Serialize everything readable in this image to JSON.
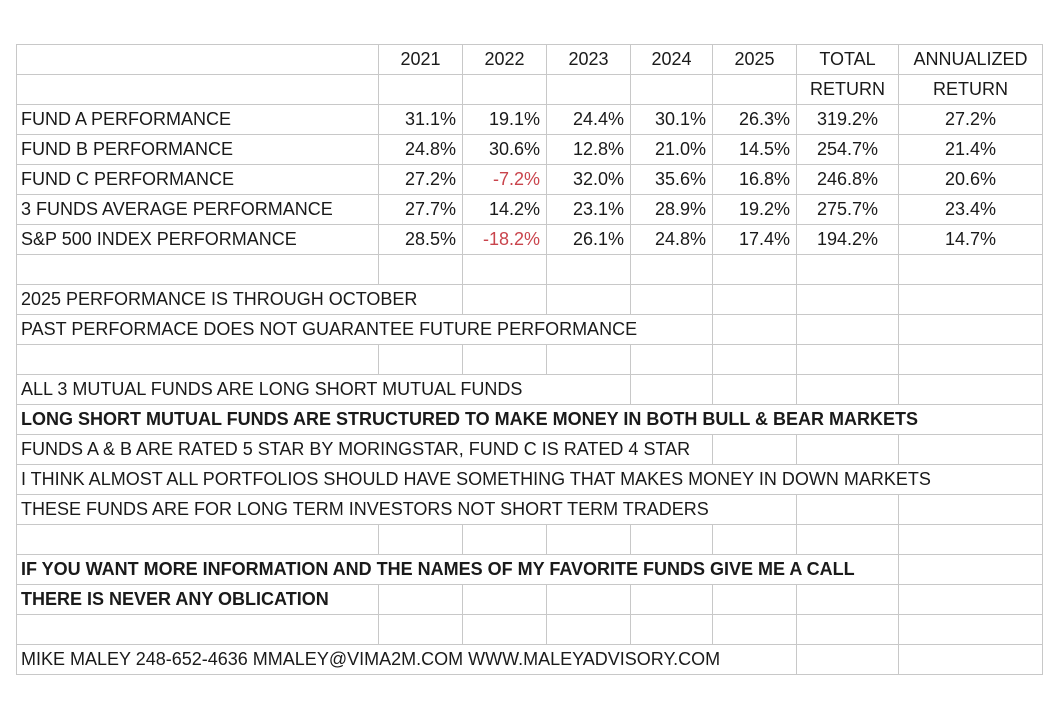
{
  "table": {
    "header": {
      "years": [
        "2021",
        "2022",
        "2023",
        "2024",
        "2025"
      ],
      "total": [
        "TOTAL",
        "RETURN"
      ],
      "annualized": [
        "ANNUALIZED",
        "RETURN"
      ]
    },
    "rows": [
      {
        "label": "FUND A PERFORMANCE",
        "values": [
          "31.1%",
          "19.1%",
          "24.4%",
          "30.1%",
          "26.3%",
          "319.2%",
          "27.2%"
        ]
      },
      {
        "label": "FUND B PERFORMANCE",
        "values": [
          "24.8%",
          "30.6%",
          "12.8%",
          "21.0%",
          "14.5%",
          "254.7%",
          "21.4%"
        ]
      },
      {
        "label": "FUND C  PERFORMANCE",
        "values": [
          "27.2%",
          "-7.2%",
          "32.0%",
          "35.6%",
          "16.8%",
          "246.8%",
          "20.6%"
        ]
      },
      {
        "label": "3 FUNDS AVERAGE PERFORMANCE",
        "values": [
          "27.7%",
          "14.2%",
          "23.1%",
          "28.9%",
          "19.2%",
          "275.7%",
          "23.4%"
        ]
      },
      {
        "label": "S&P 500 INDEX PERFORMANCE",
        "values": [
          "28.5%",
          "-18.2%",
          "26.1%",
          "24.8%",
          "17.4%",
          "194.2%",
          "14.7%"
        ]
      }
    ],
    "notes": [
      [
        {
          "text": "2025 PERFORMANCE IS THROUGH OCTOBER",
          "bold": false
        },
        {
          "text": "PAST PERFORMACE DOES NOT GUARANTEE FUTURE PERFORMANCE",
          "bold": false
        }
      ],
      [
        {
          "text": "ALL 3 MUTUAL FUNDS ARE LONG SHORT MUTUAL FUNDS",
          "bold": false
        },
        {
          "text": "LONG SHORT MUTUAL FUNDS ARE STRUCTURED TO MAKE MONEY IN BOTH BULL & BEAR MARKETS",
          "bold": true
        },
        {
          "text": "FUNDS A & B ARE RATED 5 STAR BY MORINGSTAR, FUND C IS RATED 4 STAR",
          "bold": false
        },
        {
          "text": "I THINK ALMOST ALL PORTFOLIOS SHOULD HAVE SOMETHING THAT MAKES MONEY IN DOWN MARKETS",
          "bold": false
        },
        {
          "text": "THESE FUNDS ARE FOR LONG TERM INVESTORS NOT SHORT TERM TRADERS",
          "bold": false
        }
      ],
      [
        {
          "text": "IF YOU WANT MORE INFORMATION AND THE NAMES OF MY FAVORITE FUNDS GIVE ME A CALL",
          "bold": true
        },
        {
          "text": "THERE IS NEVER ANY OBLICATION",
          "bold": true
        }
      ]
    ],
    "contact": "MIKE MALEY  248-652-4636  MMALEY@VIMA2M.COM  WWW.MALEYADVISORY.COM"
  }
}
